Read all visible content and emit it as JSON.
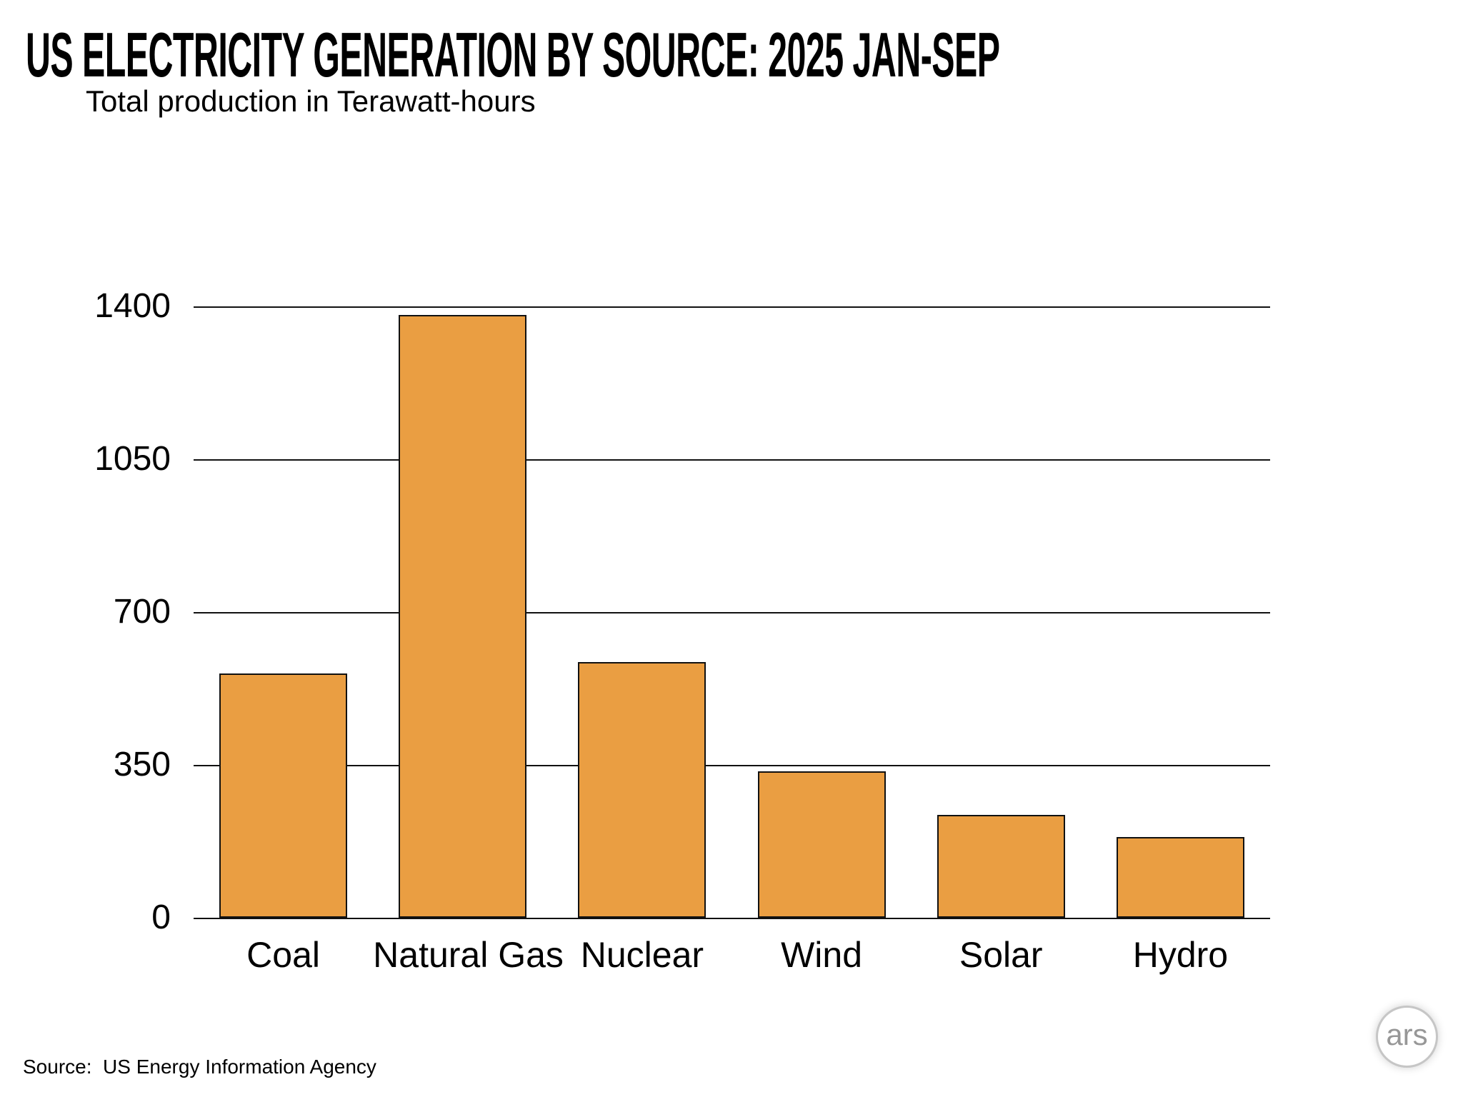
{
  "title": "US ELECTRICITY GENERATION BY SOURCE: 2025 JAN-SEP",
  "subtitle": "Total production in Terawatt-hours",
  "source_note": "Source:  US Energy Information Agency",
  "logo": {
    "text": "ars"
  },
  "colors": {
    "background": "#FFFFFF",
    "bar_fill": "#EA9E42",
    "bar_stroke": "#111111",
    "gridline": "#111111",
    "text": "#000000",
    "logo_text": "#979797",
    "logo_border": "#C6C6C6"
  },
  "chart_data": {
    "type": "bar",
    "title": "US ELECTRICITY GENERATION BY SOURCE: 2025 JAN-SEP",
    "subtitle": "Total production in Terawatt-hours",
    "categories": [
      "Coal",
      "Natural Gas",
      "Nuclear",
      "Wind",
      "Solar",
      "Hydro"
    ],
    "values": [
      560,
      1380,
      585,
      335,
      235,
      185
    ],
    "unit": "TWh",
    "xlabel": "",
    "ylabel": "Total production in Terawatt-hours",
    "ylim": [
      0,
      1400
    ],
    "yticks": [
      0,
      350,
      700,
      1050,
      1400
    ],
    "grid": true,
    "legend_position": "none",
    "source": "Source:  US Energy Information Agency"
  }
}
